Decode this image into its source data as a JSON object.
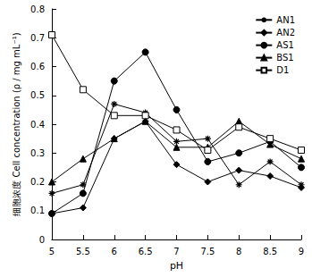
{
  "chart_data": {
    "type": "line",
    "x_label": "pH",
    "y_label": "细胞浓度 Cell concentration (ρ / mg mL⁻¹)",
    "x": [
      5,
      5.5,
      6,
      6.5,
      7,
      7.5,
      8,
      8.5,
      9
    ],
    "xlim": [
      5,
      9
    ],
    "xticks": [
      5,
      5.5,
      6,
      6.5,
      7,
      7.5,
      8,
      8.5,
      9
    ],
    "ylim": [
      0,
      0.8
    ],
    "yticks": [
      0,
      0.1,
      0.2,
      0.3,
      0.4,
      0.5,
      0.6,
      0.7,
      0.8
    ],
    "grid": false,
    "legend": "top-right",
    "series": [
      {
        "name": "AN1",
        "color": "#000000",
        "marker": "asterisk",
        "values": [
          0.16,
          0.19,
          0.47,
          0.44,
          0.34,
          0.35,
          0.19,
          0.27,
          0.19
        ]
      },
      {
        "name": "AN2",
        "color": "#000000",
        "marker": "diamond",
        "values": [
          0.09,
          0.11,
          0.35,
          0.41,
          0.26,
          0.2,
          0.24,
          0.22,
          0.18
        ]
      },
      {
        "name": "AS1",
        "color": "#000000",
        "marker": "circle",
        "values": [
          0.09,
          0.16,
          0.55,
          0.65,
          0.45,
          0.27,
          0.3,
          0.34,
          0.25
        ]
      },
      {
        "name": "BS1",
        "color": "#000000",
        "marker": "triangle",
        "values": [
          0.2,
          0.28,
          0.35,
          0.41,
          0.32,
          0.32,
          0.41,
          0.33,
          0.28
        ]
      },
      {
        "name": "D1",
        "color": "#000000",
        "marker": "open_square",
        "values": [
          0.71,
          0.52,
          0.43,
          0.43,
          0.38,
          0.31,
          0.39,
          0.35,
          0.31
        ]
      }
    ]
  }
}
